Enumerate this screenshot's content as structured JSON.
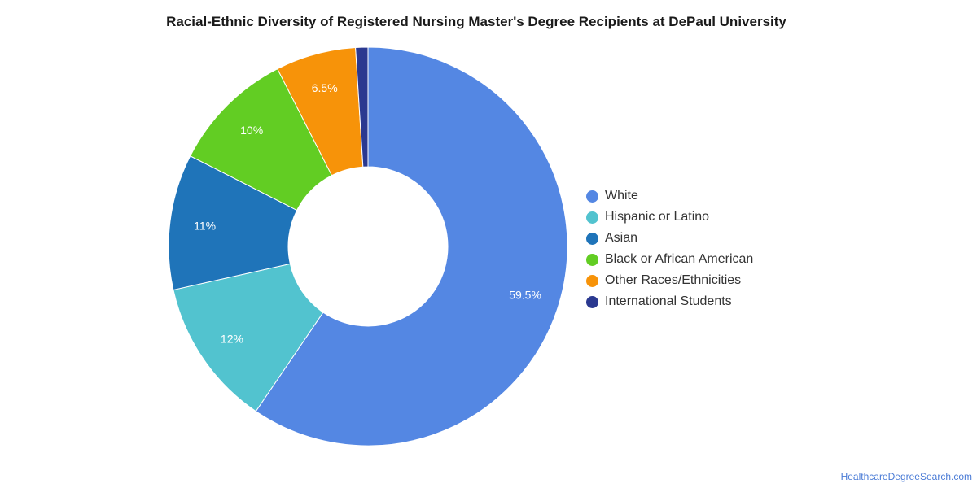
{
  "chart_data": {
    "type": "pie",
    "title": "Racial-Ethnic Diversity of Registered Nursing Master's Degree Recipients at DePaul University",
    "categories": [
      "White",
      "Hispanic or Latino",
      "Asian",
      "Black or African American",
      "Other Races/Ethnicities",
      "International Students"
    ],
    "values": [
      59.5,
      12,
      11,
      10,
      6.5,
      1
    ],
    "data_labels": [
      "59.5%",
      "12%",
      "11%",
      "10%",
      "6.5%",
      ""
    ],
    "colors": [
      "#5487e3",
      "#52c3cf",
      "#1f74b9",
      "#62cd23",
      "#f79309",
      "#2b3990"
    ],
    "donut": true,
    "legend_position": "right"
  },
  "footer": {
    "source": "HealthcareDegreeSearch.com"
  }
}
